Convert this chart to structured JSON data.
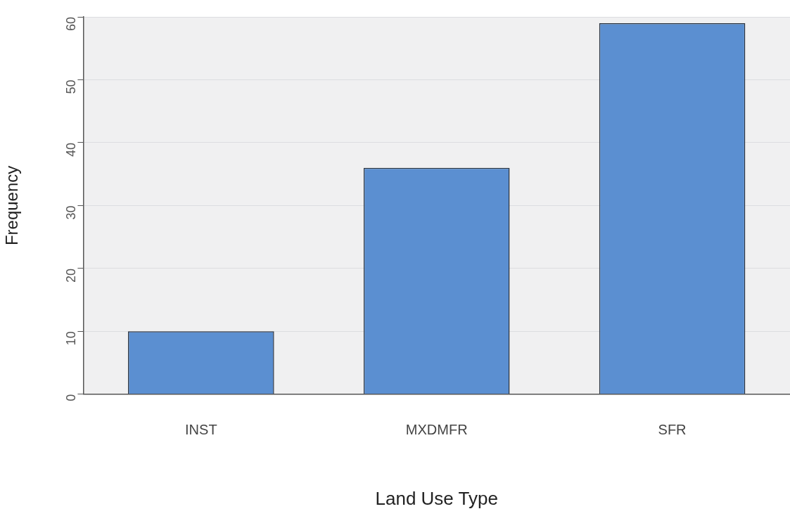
{
  "chart_data": {
    "type": "bar",
    "xlabel": "Land Use Type",
    "ylabel": "Frequency",
    "categories": [
      "INST",
      "MXDMFR",
      "SFR"
    ],
    "values": [
      10,
      36,
      59
    ],
    "color": "#5b8fd1",
    "ylim": [
      0,
      60
    ],
    "yticks": [
      0,
      10,
      20,
      30,
      40,
      50,
      60
    ],
    "grid": "y"
  }
}
